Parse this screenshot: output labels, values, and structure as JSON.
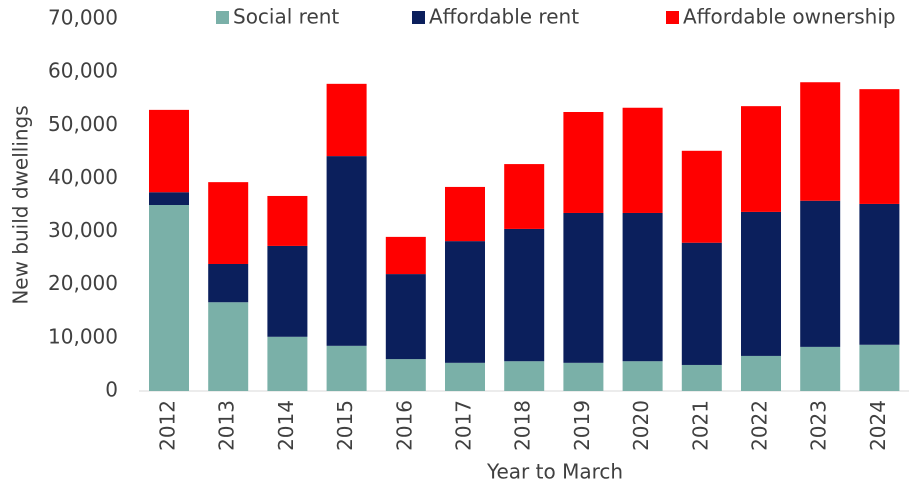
{
  "chart_data": {
    "type": "stacked_bar",
    "y_axis_label": "New build dwellings",
    "x_axis_label": "Year to March",
    "categories": [
      "2012",
      "2013",
      "2014",
      "2015",
      "2016",
      "2017",
      "2018",
      "2019",
      "2020",
      "2021",
      "2022",
      "2023",
      "2024"
    ],
    "series": [
      {
        "name": "Social rent",
        "color": "#7ab0a8",
        "values": [
          35000,
          16700,
          10200,
          8500,
          6000,
          5300,
          5600,
          5300,
          5600,
          4900,
          6600,
          8300,
          8700
        ]
      },
      {
        "name": "Affordable rent",
        "color": "#0b1f5c",
        "values": [
          2400,
          7200,
          17100,
          35700,
          16000,
          22900,
          24900,
          28200,
          27900,
          23000,
          27100,
          27500,
          26500
        ]
      },
      {
        "name": "Affordable ownership",
        "color": "#ff0000",
        "values": [
          15500,
          15400,
          9400,
          13600,
          7000,
          10200,
          12200,
          19000,
          19800,
          17300,
          19900,
          22300,
          21600
        ]
      }
    ],
    "ylim": [
      0,
      70000
    ],
    "yticks": [
      0,
      {
        "value": 10000,
        "label": "10,000"
      },
      {
        "value": 20000,
        "label": "20,000"
      },
      {
        "value": 30000,
        "label": "30,000"
      },
      {
        "value": 40000,
        "label": "40,000"
      },
      {
        "value": 50000,
        "label": "50,000"
      },
      {
        "value": 60000,
        "label": "60,000"
      },
      {
        "value": 70000,
        "label": "70,000"
      }
    ],
    "legend": "top"
  }
}
